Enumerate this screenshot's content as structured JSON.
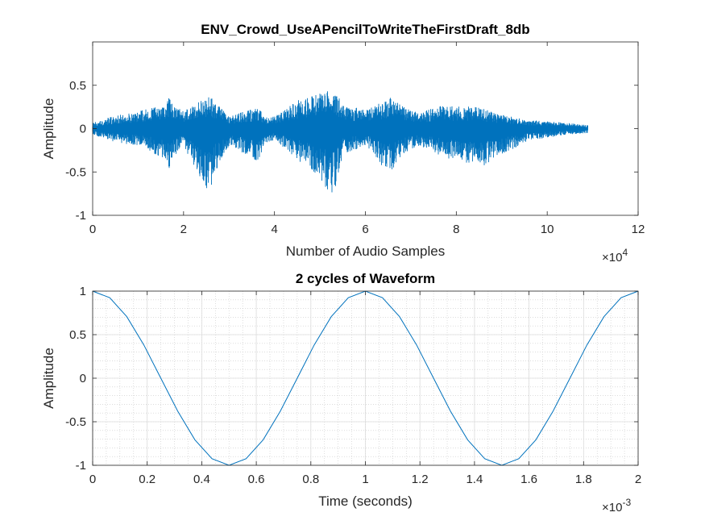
{
  "chart_data": [
    {
      "type": "line",
      "title": "ENV_Crowd_UseAPencilToWriteTheFirstDraft_8db",
      "xlabel": "Number of Audio Samples",
      "ylabel": "Amplitude",
      "xlim": [
        0,
        12
      ],
      "ylim": [
        -1,
        1
      ],
      "x_ticks": [
        "0",
        "2",
        "4",
        "6",
        "8",
        "10",
        "12"
      ],
      "y_ticks": [
        "-1",
        "-0.5",
        "0",
        "0.5"
      ],
      "x_exponent_base": "×10",
      "x_exponent": "4",
      "grid": false,
      "color": "#0072BD",
      "series": [
        {
          "x": [
            0,
            0.5,
            1.0,
            1.6,
            1.68,
            1.76,
            2.0,
            2.5,
            2.6,
            2.7,
            3.0,
            3.6,
            3.7,
            3.8,
            4.0,
            4.5,
            5.1,
            5.2,
            5.35,
            5.5,
            6.0,
            6.4,
            6.6,
            6.8,
            7.2,
            7.6,
            8.2,
            8.5,
            9.0,
            9.6,
            10.4,
            10.9
          ],
          "upper": [
            0.07,
            0.15,
            0.2,
            0.28,
            0.38,
            0.28,
            0.2,
            0.37,
            0.37,
            0.3,
            0.15,
            0.24,
            0.21,
            0.14,
            0.14,
            0.33,
            0.42,
            0.44,
            0.44,
            0.27,
            0.22,
            0.31,
            0.39,
            0.26,
            0.18,
            0.26,
            0.26,
            0.25,
            0.16,
            0.1,
            0.07,
            0.04
          ],
          "lower": [
            -0.07,
            -0.16,
            -0.2,
            -0.35,
            -0.52,
            -0.35,
            -0.2,
            -0.7,
            -0.72,
            -0.5,
            -0.2,
            -0.37,
            -0.37,
            -0.17,
            -0.13,
            -0.35,
            -0.65,
            -0.77,
            -0.7,
            -0.3,
            -0.2,
            -0.45,
            -0.48,
            -0.3,
            -0.2,
            -0.3,
            -0.42,
            -0.46,
            -0.3,
            -0.14,
            -0.07,
            -0.05
          ]
        }
      ]
    },
    {
      "type": "line",
      "title": "2 cycles of Waveform",
      "xlabel": "Time (seconds)",
      "ylabel": "Amplitude",
      "xlim": [
        0,
        2
      ],
      "ylim": [
        -1,
        1
      ],
      "x_ticks": [
        "0",
        "0.2",
        "0.4",
        "0.6",
        "0.8",
        "1",
        "1.2",
        "1.4",
        "1.6",
        "1.8",
        "2"
      ],
      "y_ticks": [
        "-1",
        "-0.5",
        "0",
        "0.5",
        "1"
      ],
      "x_exponent_base": "×10",
      "x_exponent": "-3",
      "grid": true,
      "minor_grid": true,
      "color": "#0072BD",
      "series": [
        {
          "x": [
            0,
            0.0625,
            0.125,
            0.1875,
            0.25,
            0.3125,
            0.375,
            0.4375,
            0.5,
            0.5625,
            0.625,
            0.6875,
            0.75,
            0.8125,
            0.875,
            0.9375,
            1.0,
            1.0625,
            1.125,
            1.1875,
            1.25,
            1.3125,
            1.375,
            1.4375,
            1.5,
            1.5625,
            1.625,
            1.6875,
            1.75,
            1.8125,
            1.875,
            1.9375,
            2.0
          ],
          "y": [
            1,
            0.9239,
            0.7071,
            0.3827,
            0,
            -0.3827,
            -0.7071,
            -0.9239,
            -1,
            -0.9239,
            -0.7071,
            -0.3827,
            0,
            0.3827,
            0.7071,
            0.9239,
            1,
            0.9239,
            0.7071,
            0.3827,
            0,
            -0.3827,
            -0.7071,
            -0.9239,
            -1,
            -0.9239,
            -0.7071,
            -0.3827,
            0,
            0.3827,
            0.7071,
            0.9239,
            1
          ]
        }
      ]
    }
  ]
}
